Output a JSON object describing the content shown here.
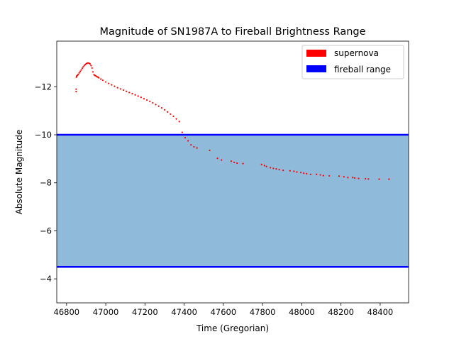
{
  "chart_data": {
    "type": "scatter",
    "title": "Magnitude of SN1987A to Fireball Brightness Range",
    "xlabel": "Time (Gregorian)",
    "ylabel": "Absolute Magnitude",
    "xlim": [
      46750,
      48545
    ],
    "ylim": [
      -3,
      -13.9
    ],
    "y_inverted": true,
    "x_ticks": [
      46800,
      47000,
      47200,
      47400,
      47600,
      47800,
      48000,
      48200,
      48400
    ],
    "y_ticks": [
      -12,
      -10,
      -8,
      -6,
      -4
    ],
    "grid": false,
    "legend": {
      "placement": "top-right",
      "entries": [
        {
          "label": "supernova",
          "color": "#ff0000"
        },
        {
          "label": "fireball range",
          "color": "#0000ff"
        }
      ]
    },
    "fireball_range": {
      "bright_limit": -10,
      "faint_limit": -4.5,
      "line_color": "#0000ff",
      "fill_color": "#8fbad9"
    },
    "series": [
      {
        "name": "supernova",
        "color": "#ff0000",
        "x": [
          46849,
          46849,
          46850,
          46852,
          46856,
          46860,
          46865,
          46870,
          46875,
          46880,
          46885,
          46890,
          46895,
          46900,
          46905,
          46910,
          46915,
          46920,
          46925,
          46930,
          46935,
          46940,
          46945,
          46950,
          46955,
          46960,
          46965,
          46975,
          46985,
          47000,
          47015,
          47030,
          47045,
          47060,
          47075,
          47090,
          47105,
          47120,
          47135,
          47150,
          47165,
          47180,
          47195,
          47210,
          47225,
          47240,
          47255,
          47270,
          47285,
          47300,
          47315,
          47330,
          47345,
          47360,
          47375,
          47390,
          47405,
          47420,
          47435,
          47450,
          47465,
          47530,
          47570,
          47590,
          47640,
          47655,
          47670,
          47700,
          47795,
          47810,
          47820,
          47840,
          47855,
          47870,
          47885,
          47905,
          47940,
          47960,
          47975,
          47995,
          48010,
          48025,
          48045,
          48075,
          48095,
          48110,
          48140,
          48190,
          48215,
          48235,
          48260,
          48270,
          48290,
          48325,
          48340,
          48395,
          48445
        ],
        "y": [
          -11.8,
          -11.9,
          -12.4,
          -12.45,
          -12.48,
          -12.52,
          -12.58,
          -12.64,
          -12.7,
          -12.77,
          -12.83,
          -12.88,
          -12.92,
          -12.96,
          -12.98,
          -12.99,
          -12.98,
          -12.95,
          -12.88,
          -12.78,
          -12.62,
          -12.5,
          -12.47,
          -12.45,
          -12.42,
          -12.4,
          -12.37,
          -12.32,
          -12.27,
          -12.2,
          -12.14,
          -12.08,
          -12.02,
          -11.96,
          -11.91,
          -11.86,
          -11.81,
          -11.76,
          -11.71,
          -11.66,
          -11.61,
          -11.56,
          -11.5,
          -11.45,
          -11.39,
          -11.33,
          -11.26,
          -11.19,
          -11.12,
          -11.04,
          -10.95,
          -10.86,
          -10.77,
          -10.66,
          -10.55,
          -10.1,
          -9.88,
          -9.75,
          -9.58,
          -9.5,
          -9.45,
          -9.35,
          -9.02,
          -8.95,
          -8.9,
          -8.85,
          -8.82,
          -8.8,
          -8.76,
          -8.72,
          -8.68,
          -8.63,
          -8.6,
          -8.58,
          -8.55,
          -8.52,
          -8.5,
          -8.48,
          -8.45,
          -8.43,
          -8.4,
          -8.38,
          -8.35,
          -8.35,
          -8.33,
          -8.3,
          -8.29,
          -8.28,
          -8.25,
          -8.22,
          -8.22,
          -8.2,
          -8.18,
          -8.17,
          -8.16,
          -8.15,
          -8.15
        ]
      }
    ]
  }
}
